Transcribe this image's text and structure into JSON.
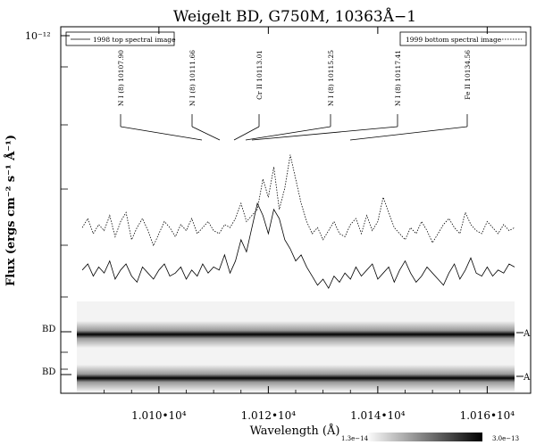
{
  "chart_data": {
    "type": "line",
    "title": "Weigelt BD, G750M, 10363Å−1",
    "xlabel": "Wavelength (Å)",
    "ylabel": "Flux (ergs cm⁻² s⁻¹ Å⁻¹)",
    "xlim": [
      10085,
      10165
    ],
    "ylog": true,
    "y_top_tick_label": "10⁻¹²",
    "x_ticks": [
      10100,
      10120,
      10140,
      10160
    ],
    "x_tick_labels": [
      "1.010•10⁴",
      "1.012•10⁴",
      "1.014•10⁴",
      "1.016•10⁴"
    ],
    "legend": [
      {
        "position": "top-left",
        "label": "1998 top spectral image",
        "style": "solid"
      },
      {
        "position": "top-right",
        "label": "1999 bottom spectral image",
        "style": "dotted"
      }
    ],
    "line_ids": [
      {
        "label": "N I (8) 10107.90",
        "wavelength": 10107.9
      },
      {
        "label": "N I (8) 10111.66",
        "wavelength": 10111.66
      },
      {
        "label": "Cr II 10113.01",
        "wavelength": 10113.01
      },
      {
        "label": "N I (8) 10115.25",
        "wavelength": 10115.25
      },
      {
        "label": "N I (8) 10117.41",
        "wavelength": 10117.41
      },
      {
        "label": "Fe II 10134.56",
        "wavelength": 10134.56
      }
    ],
    "series": [
      {
        "style": "dotted",
        "x_start": 10086,
        "x_step": 1,
        "values": [
          0.42,
          0.45,
          0.4,
          0.43,
          0.41,
          0.46,
          0.39,
          0.44,
          0.47,
          0.38,
          0.42,
          0.45,
          0.41,
          0.36,
          0.4,
          0.44,
          0.42,
          0.39,
          0.43,
          0.41,
          0.45,
          0.4,
          0.42,
          0.44,
          0.41,
          0.4,
          0.43,
          0.42,
          0.45,
          0.5,
          0.44,
          0.46,
          0.48,
          0.58,
          0.52,
          0.62,
          0.48,
          0.55,
          0.66,
          0.58,
          0.5,
          0.44,
          0.4,
          0.42,
          0.38,
          0.41,
          0.44,
          0.4,
          0.39,
          0.43,
          0.45,
          0.4,
          0.46,
          0.41,
          0.44,
          0.52,
          0.47,
          0.42,
          0.4,
          0.38,
          0.42,
          0.4,
          0.44,
          0.41,
          0.37,
          0.4,
          0.43,
          0.45,
          0.42,
          0.4,
          0.47,
          0.43,
          0.41,
          0.4,
          0.44,
          0.42,
          0.4,
          0.43,
          0.41,
          0.42
        ]
      },
      {
        "style": "solid",
        "x_start": 10086,
        "x_step": 1,
        "values": [
          0.28,
          0.3,
          0.26,
          0.29,
          0.27,
          0.31,
          0.25,
          0.28,
          0.3,
          0.26,
          0.24,
          0.29,
          0.27,
          0.25,
          0.28,
          0.3,
          0.26,
          0.27,
          0.29,
          0.25,
          0.28,
          0.26,
          0.3,
          0.27,
          0.29,
          0.28,
          0.33,
          0.27,
          0.31,
          0.38,
          0.34,
          0.42,
          0.5,
          0.46,
          0.4,
          0.48,
          0.45,
          0.38,
          0.35,
          0.31,
          0.33,
          0.29,
          0.26,
          0.23,
          0.25,
          0.22,
          0.26,
          0.24,
          0.27,
          0.25,
          0.29,
          0.26,
          0.28,
          0.3,
          0.25,
          0.27,
          0.29,
          0.24,
          0.28,
          0.31,
          0.27,
          0.24,
          0.26,
          0.29,
          0.27,
          0.25,
          0.23,
          0.27,
          0.3,
          0.25,
          0.28,
          0.32,
          0.27,
          0.26,
          0.29,
          0.26,
          0.28,
          0.27,
          0.3,
          0.29
        ]
      }
    ],
    "image_strip_labels": {
      "left_top": "BD",
      "left_bottom": "BD",
      "right_top": "A",
      "right_bottom": "A"
    },
    "colorbar": {
      "min_label": "1.3e−14",
      "max_label": "3.0e−13"
    }
  }
}
